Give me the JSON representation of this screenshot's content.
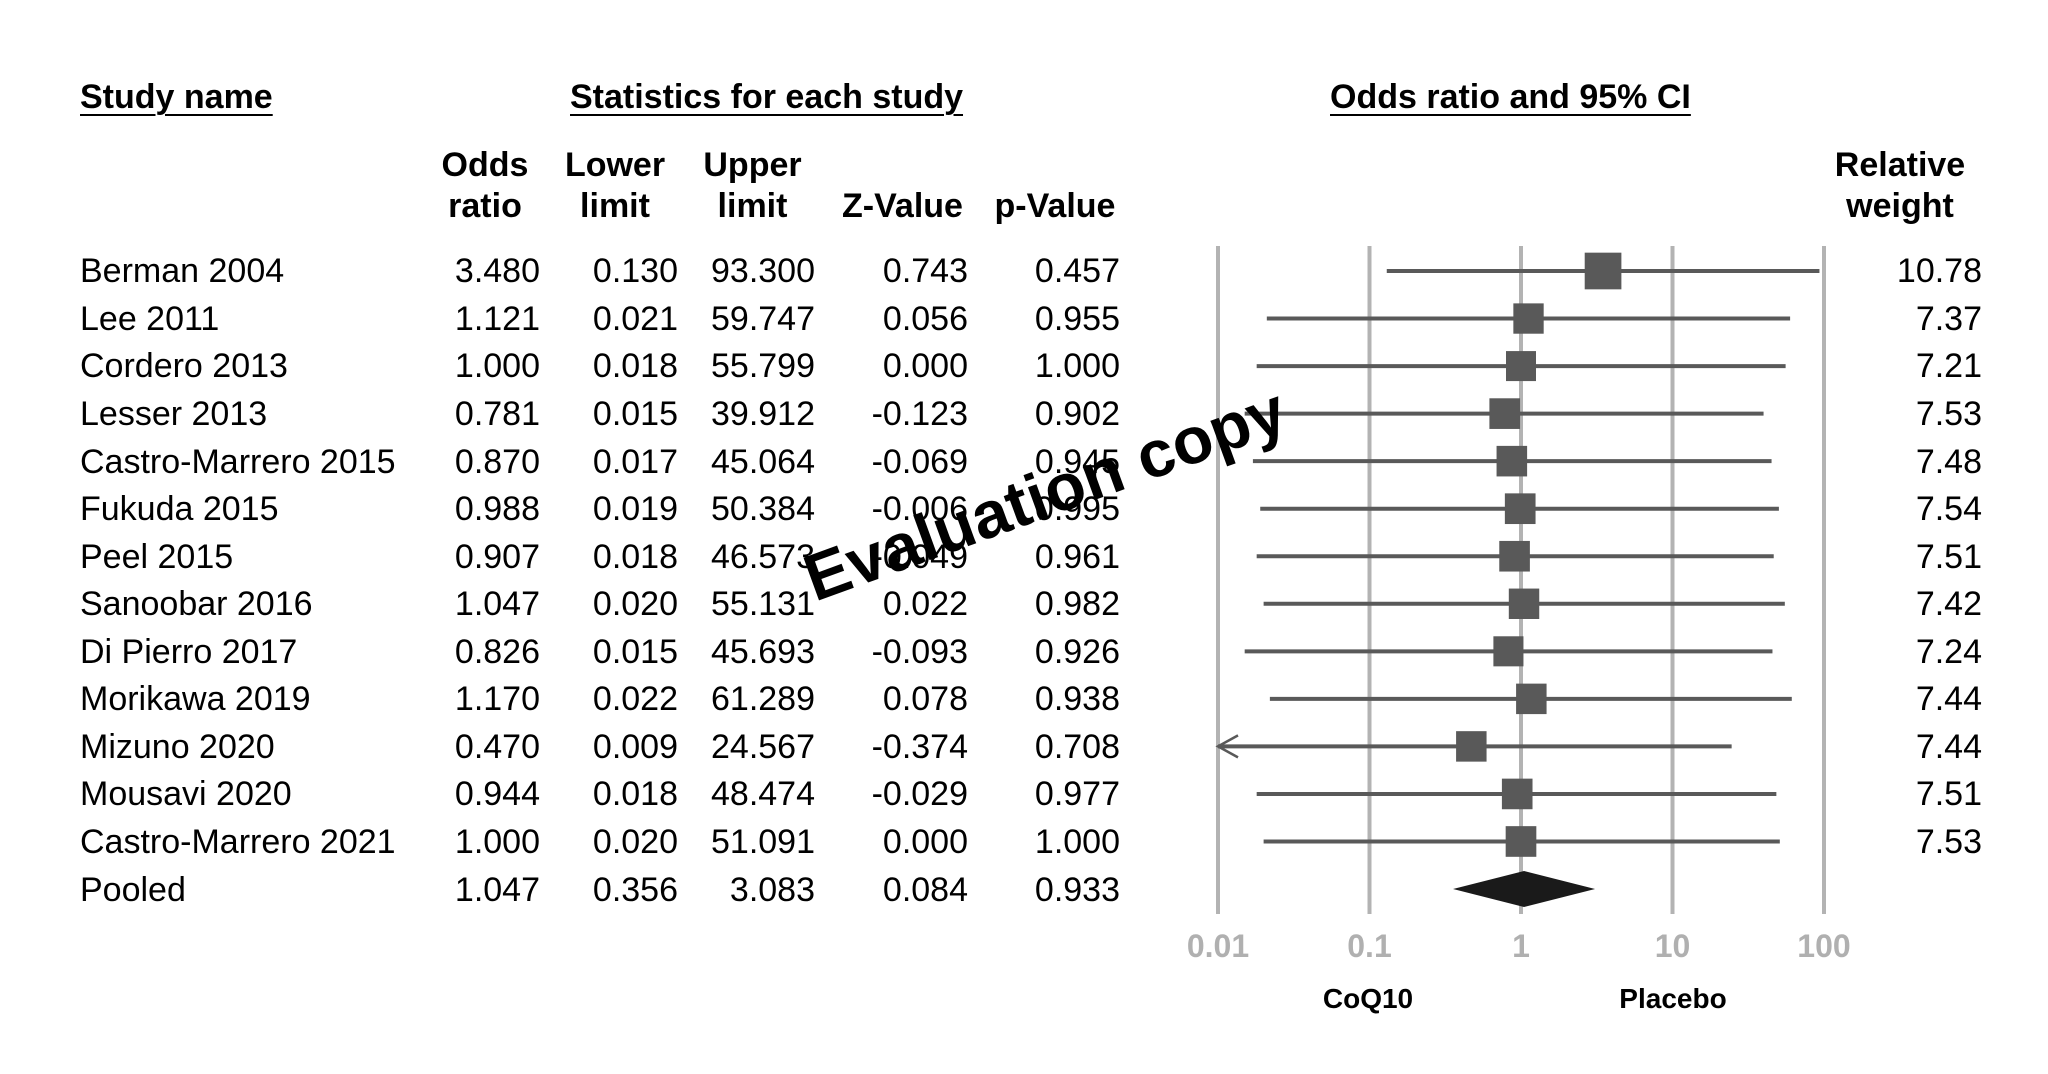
{
  "headers": {
    "study_name": "Study name",
    "statistics": "Statistics for each study",
    "odds_ratio_ci": "Odds ratio and 95% CI"
  },
  "columns": {
    "odds_ratio": [
      "Odds",
      "ratio"
    ],
    "lower_limit": [
      "Lower",
      "limit"
    ],
    "upper_limit": [
      "Upper",
      "limit"
    ],
    "z_value": "Z-Value",
    "p_value": "p-Value",
    "relative_weight": [
      "Relative",
      "weight"
    ]
  },
  "rows": [
    {
      "study": "Berman 2004",
      "or": "3.480",
      "lower": "0.130",
      "upper": "93.300",
      "z": "0.743",
      "p": "0.457",
      "weight": "10.78"
    },
    {
      "study": "Lee 2011",
      "or": "1.121",
      "lower": "0.021",
      "upper": "59.747",
      "z": "0.056",
      "p": "0.955",
      "weight": "7.37"
    },
    {
      "study": "Cordero 2013",
      "or": "1.000",
      "lower": "0.018",
      "upper": "55.799",
      "z": "0.000",
      "p": "1.000",
      "weight": "7.21"
    },
    {
      "study": "Lesser 2013",
      "or": "0.781",
      "lower": "0.015",
      "upper": "39.912",
      "z": "-0.123",
      "p": "0.902",
      "weight": "7.53"
    },
    {
      "study": "Castro-Marrero 2015",
      "or": "0.870",
      "lower": "0.017",
      "upper": "45.064",
      "z": "-0.069",
      "p": "0.945",
      "weight": "7.48"
    },
    {
      "study": "Fukuda 2015",
      "or": "0.988",
      "lower": "0.019",
      "upper": "50.384",
      "z": "-0.006",
      "p": "0.995",
      "weight": "7.54"
    },
    {
      "study": "Peel 2015",
      "or": "0.907",
      "lower": "0.018",
      "upper": "46.573",
      "z": "-0.049",
      "p": "0.961",
      "weight": "7.51"
    },
    {
      "study": "Sanoobar 2016",
      "or": "1.047",
      "lower": "0.020",
      "upper": "55.131",
      "z": "0.022",
      "p": "0.982",
      "weight": "7.42"
    },
    {
      "study": "Di Pierro 2017",
      "or": "0.826",
      "lower": "0.015",
      "upper": "45.693",
      "z": "-0.093",
      "p": "0.926",
      "weight": "7.24"
    },
    {
      "study": "Morikawa 2019",
      "or": "1.170",
      "lower": "0.022",
      "upper": "61.289",
      "z": "0.078",
      "p": "0.938",
      "weight": "7.44"
    },
    {
      "study": "Mizuno 2020",
      "or": "0.470",
      "lower": "0.009",
      "upper": "24.567",
      "z": "-0.374",
      "p": "0.708",
      "weight": "7.44"
    },
    {
      "study": "Mousavi 2020",
      "or": "0.944",
      "lower": "0.018",
      "upper": "48.474",
      "z": "-0.029",
      "p": "0.977",
      "weight": "7.51"
    },
    {
      "study": "Castro-Marrero 2021",
      "or": "1.000",
      "lower": "0.020",
      "upper": "51.091",
      "z": "0.000",
      "p": "1.000",
      "weight": "7.53"
    }
  ],
  "pooled": {
    "study": "Pooled",
    "or": "1.047",
    "lower": "0.356",
    "upper": "3.083",
    "z": "0.084",
    "p": "0.933"
  },
  "watermark": "Evaluation copy",
  "chart_data": {
    "type": "forest",
    "title": "Odds ratio and 95% CI",
    "x_scale": "log",
    "xlim": [
      0.01,
      100
    ],
    "x_ticks": [
      0.01,
      0.1,
      1,
      10,
      100
    ],
    "x_tick_labels": [
      "0.01",
      "0.1",
      "1",
      "10",
      "100"
    ],
    "left_label": "CoQ10",
    "right_label": "Placebo",
    "studies": [
      {
        "name": "Berman 2004",
        "or": 3.48,
        "lower": 0.13,
        "upper": 93.3,
        "weight": 10.78
      },
      {
        "name": "Lee 2011",
        "or": 1.121,
        "lower": 0.021,
        "upper": 59.747,
        "weight": 7.37
      },
      {
        "name": "Cordero 2013",
        "or": 1.0,
        "lower": 0.018,
        "upper": 55.799,
        "weight": 7.21
      },
      {
        "name": "Lesser 2013",
        "or": 0.781,
        "lower": 0.015,
        "upper": 39.912,
        "weight": 7.53
      },
      {
        "name": "Castro-Marrero 2015",
        "or": 0.87,
        "lower": 0.017,
        "upper": 45.064,
        "weight": 7.48
      },
      {
        "name": "Fukuda 2015",
        "or": 0.988,
        "lower": 0.019,
        "upper": 50.384,
        "weight": 7.54
      },
      {
        "name": "Peel 2015",
        "or": 0.907,
        "lower": 0.018,
        "upper": 46.573,
        "weight": 7.51
      },
      {
        "name": "Sanoobar 2016",
        "or": 1.047,
        "lower": 0.02,
        "upper": 55.131,
        "weight": 7.42
      },
      {
        "name": "Di Pierro 2017",
        "or": 0.826,
        "lower": 0.015,
        "upper": 45.693,
        "weight": 7.24
      },
      {
        "name": "Morikawa 2019",
        "or": 1.17,
        "lower": 0.022,
        "upper": 61.289,
        "weight": 7.44
      },
      {
        "name": "Mizuno 2020",
        "or": 0.47,
        "lower": 0.009,
        "upper": 24.567,
        "weight": 7.44
      },
      {
        "name": "Mousavi 2020",
        "or": 0.944,
        "lower": 0.018,
        "upper": 48.474,
        "weight": 7.51
      },
      {
        "name": "Castro-Marrero 2021",
        "or": 1.0,
        "lower": 0.02,
        "upper": 51.091,
        "weight": 7.53
      }
    ],
    "pooled": {
      "or": 1.047,
      "lower": 0.356,
      "upper": 3.083
    },
    "colors": {
      "marker": "#595959",
      "diamond": "#1a1a1a",
      "gridline": "#b3b3b3",
      "tick_label": "#b0b0b0"
    }
  }
}
